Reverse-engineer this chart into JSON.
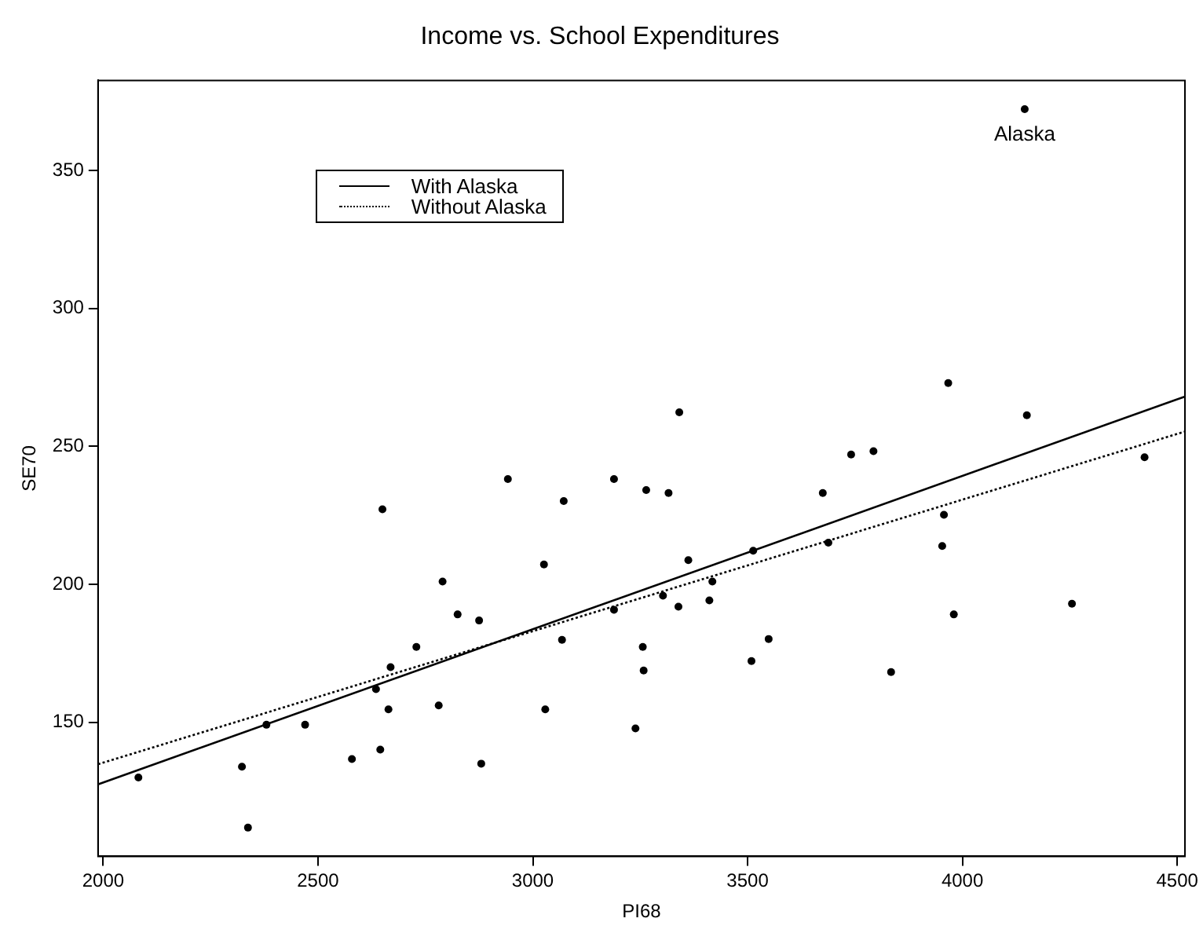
{
  "chart_data": {
    "type": "scatter",
    "title": "Income vs. School Expenditures",
    "xlabel": "PI68",
    "ylabel": "SE70",
    "xlim": [
      1988,
      4518
    ],
    "ylim": [
      101.4,
      382.7
    ],
    "xticks": [
      2000,
      2500,
      3000,
      3500,
      4000,
      4500
    ],
    "yticks": [
      150,
      200,
      250,
      300,
      350
    ],
    "grid": false,
    "legend": "top left",
    "marker": "circle",
    "annotations": [
      {
        "text": "Alaska",
        "x": 4145,
        "y": 372.3
      }
    ],
    "series": [
      {
        "color": "#000000",
        "x": [
          2082,
          2323,
          2337,
          2380,
          2470,
          2579,
          2635,
          2645,
          2650,
          2664,
          2669,
          2729,
          2781,
          2790,
          2825,
          2875,
          2880,
          2942,
          3026,
          3029,
          3068,
          3072,
          3189,
          3189,
          3239,
          3256,
          3258,
          3264,
          3316,
          3303,
          3339,
          3362,
          3411,
          3418,
          3509,
          3513,
          3549,
          3675,
          3688,
          3834,
          3953,
          3957,
          3980,
          4255,
          4145,
          3341,
          3967,
          4150,
          3741,
          3793,
          4424
        ],
        "values": [
          130,
          133.9,
          111.8,
          149.1,
          149.1,
          136.7,
          162,
          140.1,
          227.2,
          154.7,
          170,
          177.3,
          156.1,
          201,
          189.1,
          186.9,
          135,
          238.2,
          207.2,
          154.7,
          179.9,
          230.2,
          238.2,
          190.8,
          147.8,
          177.3,
          168.8,
          234.2,
          233.1,
          195.9,
          191.9,
          208.8,
          194.2,
          201,
          172.2,
          212.2,
          180.2,
          233.1,
          215.1,
          168.2,
          213.9,
          225.2,
          189.1,
          193,
          372.3,
          262.4,
          273,
          261.3,
          247.1,
          248.3,
          246.1
        ]
      },
      {
        "type": "line",
        "name": "With Alaska",
        "color": "#000000",
        "line_style": "solid",
        "marker": "none",
        "x": [
          1988,
          4518
        ],
        "values": [
          127.5,
          268.1
        ]
      },
      {
        "type": "line",
        "name": "Without Alaska",
        "color": "#000000",
        "line_style": "dotted",
        "marker": "none",
        "x": [
          1988,
          4518
        ],
        "values": [
          134.8,
          255.4
        ]
      }
    ]
  }
}
